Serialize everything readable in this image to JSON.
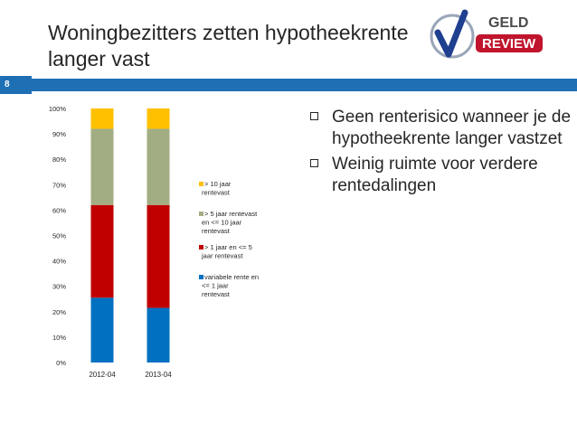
{
  "slide": {
    "title": "Woningbezitters zetten hypotheekrente langer vast",
    "number": "8",
    "accent_color": "#1f6fb5"
  },
  "logo": {
    "text_top": "GELD",
    "text_bottom": "REVIEW",
    "colors": {
      "check": "#1f3f8f",
      "badge": "#c0152d"
    }
  },
  "bullets": [
    {
      "text": "Geen renterisico wanneer je de hypotheekrente langer vastzet"
    },
    {
      "text": "Weinig ruimte voor verdere rentedalingen"
    }
  ],
  "chart_data": {
    "type": "bar",
    "stacked": true,
    "categories": [
      "2012-04",
      "2013-04"
    ],
    "ylim": [
      0,
      100
    ],
    "yticks": [
      "0%",
      "10%",
      "20%",
      "30%",
      "40%",
      "50%",
      "60%",
      "70%",
      "80%",
      "90%",
      "100%"
    ],
    "grid": false,
    "legend_position": "right",
    "series": [
      {
        "name": "variabele rente en <= 1 jaar rentevast",
        "color": "#0070c0",
        "values": [
          25.5,
          21.5
        ]
      },
      {
        "name": "> 1 jaar en <= 5 jaar rentevast",
        "color": "#c00000",
        "values": [
          36.5,
          40.5
        ]
      },
      {
        "name": "> 5 jaar rentevast en <= 10 jaar rentevast",
        "color": "#a2ad83",
        "values": [
          30,
          30
        ]
      },
      {
        "name": "> 10 jaar rentevast",
        "color": "#ffc000",
        "values": [
          8,
          8
        ]
      }
    ]
  }
}
